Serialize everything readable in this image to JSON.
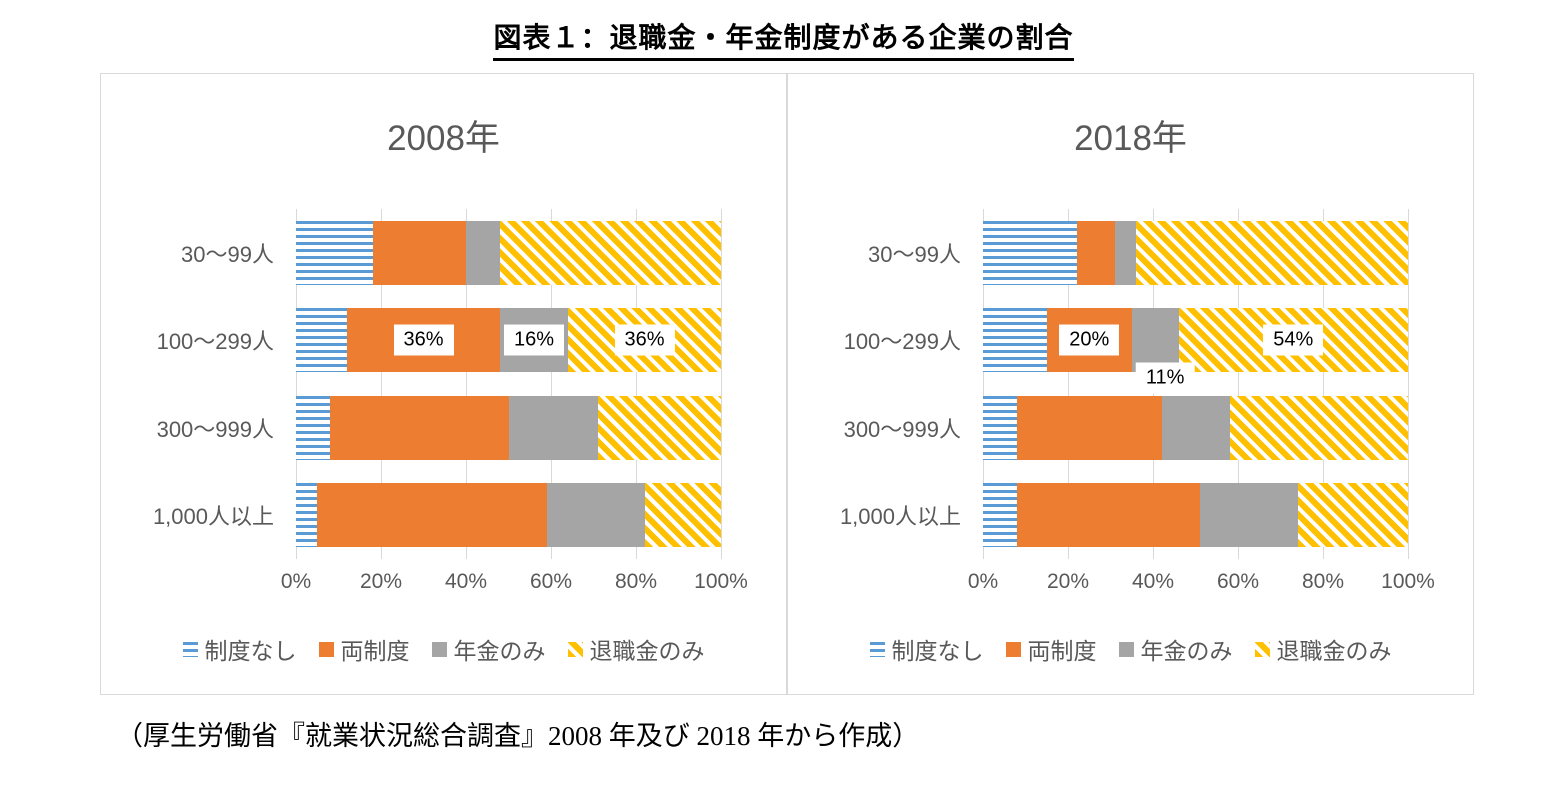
{
  "page": {
    "title": "図表１：退職金・年金制度がある企業の割合",
    "caption": "（厚生労働省『就業状況総合調査』2008 年及び 2018 年から作成）"
  },
  "colors": {
    "no_system_blue": "#5B9BD5",
    "both_systems_orange": "#ED7D31",
    "pension_only_gray": "#A5A5A5",
    "retirement_only_yellow": "#FFC000",
    "axis_text": "#595959",
    "gridline": "#D9D9D9"
  },
  "chart_data": [
    {
      "type": "bar",
      "orientation": "horizontal",
      "stacked": true,
      "unit": "%",
      "title": "2008年",
      "categories": [
        "30〜99人",
        "100〜299人",
        "300〜999人",
        "1,000人以上"
      ],
      "series": [
        {
          "key": "no-system",
          "name": "制度なし",
          "color": "#5B9BD5",
          "pattern": "hstripe",
          "values": [
            18,
            12,
            8,
            5
          ]
        },
        {
          "key": "both-systems",
          "name": "両制度",
          "color": "#ED7D31",
          "pattern": "solid",
          "values": [
            22,
            36,
            42,
            54
          ]
        },
        {
          "key": "pension-only",
          "name": "年金のみ",
          "color": "#A5A5A5",
          "pattern": "solid",
          "values": [
            8,
            16,
            21,
            23
          ]
        },
        {
          "key": "retirement-only",
          "name": "退職金のみ",
          "color": "#FFC000",
          "pattern": "dstripe",
          "values": [
            52,
            36,
            29,
            18
          ]
        }
      ],
      "xlim": [
        0,
        100
      ],
      "xticks": [
        "0%",
        "20%",
        "40%",
        "60%",
        "80%",
        "100%"
      ],
      "grid": true,
      "legend_position": "bottom",
      "data_labels": [
        {
          "category_index": 1,
          "series_index": 1,
          "text": "36%",
          "dx": 0,
          "dy": 0
        },
        {
          "category_index": 1,
          "series_index": 2,
          "text": "16%",
          "dx": 0,
          "dy": 0
        },
        {
          "category_index": 1,
          "series_index": 3,
          "text": "36%",
          "dx": 0,
          "dy": 0
        }
      ]
    },
    {
      "type": "bar",
      "orientation": "horizontal",
      "stacked": true,
      "unit": "%",
      "title": "2018年",
      "categories": [
        "30〜99人",
        "100〜299人",
        "300〜999人",
        "1,000人以上"
      ],
      "series": [
        {
          "key": "no-system",
          "name": "制度なし",
          "color": "#5B9BD5",
          "pattern": "hstripe",
          "values": [
            22,
            15,
            8,
            8
          ]
        },
        {
          "key": "both-systems",
          "name": "両制度",
          "color": "#ED7D31",
          "pattern": "solid",
          "values": [
            9,
            20,
            34,
            43
          ]
        },
        {
          "key": "pension-only",
          "name": "年金のみ",
          "color": "#A5A5A5",
          "pattern": "solid",
          "values": [
            5,
            11,
            16,
            23
          ]
        },
        {
          "key": "retirement-only",
          "name": "退職金のみ",
          "color": "#FFC000",
          "pattern": "dstripe",
          "values": [
            64,
            54,
            42,
            26
          ]
        }
      ],
      "xlim": [
        0,
        100
      ],
      "xticks": [
        "0%",
        "20%",
        "40%",
        "60%",
        "80%",
        "100%"
      ],
      "grid": true,
      "legend_position": "bottom",
      "data_labels": [
        {
          "category_index": 1,
          "series_index": 1,
          "text": "20%",
          "dx": 0,
          "dy": 0
        },
        {
          "category_index": 1,
          "series_index": 2,
          "text": "11%",
          "dx": 10,
          "dy": 38
        },
        {
          "category_index": 1,
          "series_index": 3,
          "text": "54%",
          "dx": 0,
          "dy": 0
        }
      ]
    }
  ]
}
